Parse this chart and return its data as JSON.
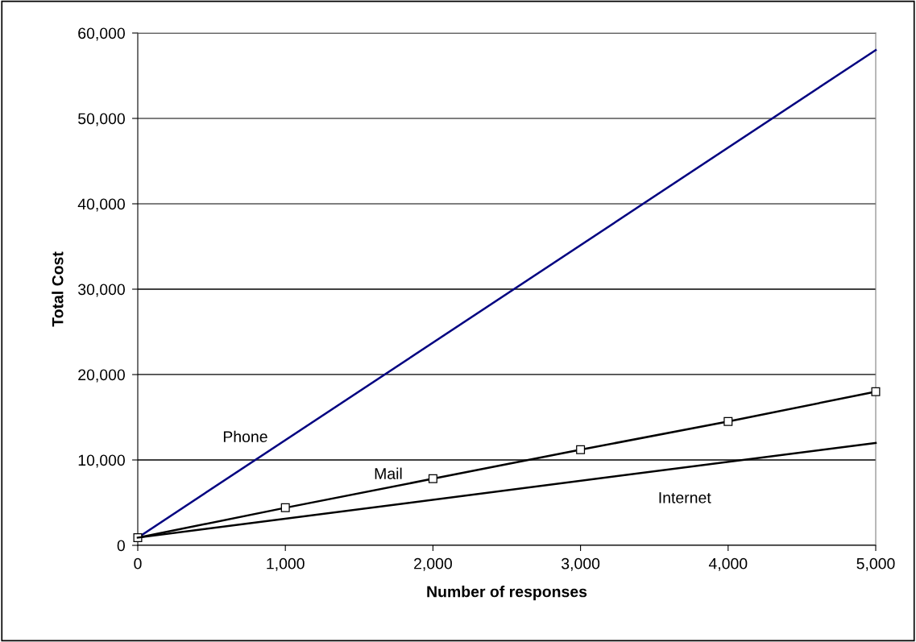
{
  "chart_data": {
    "type": "line",
    "xlabel": "Number of responses",
    "ylabel": "Total Cost",
    "xlim": [
      0,
      5000
    ],
    "xticks": [
      {
        "value": 0,
        "label": "0"
      },
      {
        "value": 1000,
        "label": "1,000"
      },
      {
        "value": 2000,
        "label": "2,000"
      },
      {
        "value": 3000,
        "label": "3,000"
      },
      {
        "value": 4000,
        "label": "4,000"
      },
      {
        "value": 5000,
        "label": "5,000"
      }
    ],
    "ylim": [
      0,
      60000
    ],
    "yticks": [
      {
        "value": 0,
        "label": "0"
      },
      {
        "value": 10000,
        "label": "10,000"
      },
      {
        "value": 20000,
        "label": "20,000"
      },
      {
        "value": 30000,
        "label": "30,000"
      },
      {
        "value": 40000,
        "label": "40,000"
      },
      {
        "value": 50000,
        "label": "50,000"
      },
      {
        "value": 60000,
        "label": "60,000"
      }
    ],
    "grid": "y",
    "legend": false,
    "series": [
      {
        "name": "Phone",
        "color": "#000080",
        "x": [
          0,
          5000
        ],
        "values": [
          900,
          58000
        ],
        "marker": "none"
      },
      {
        "name": "Mail",
        "color": "#000000",
        "x": [
          0,
          1000,
          2000,
          3000,
          4000,
          5000
        ],
        "values": [
          900,
          4400,
          7800,
          11200,
          14500,
          18000
        ],
        "marker": "square"
      },
      {
        "name": "Internet",
        "color": "#000000",
        "x": [
          0,
          5000
        ],
        "values": [
          900,
          12000
        ],
        "marker": "none"
      }
    ]
  }
}
